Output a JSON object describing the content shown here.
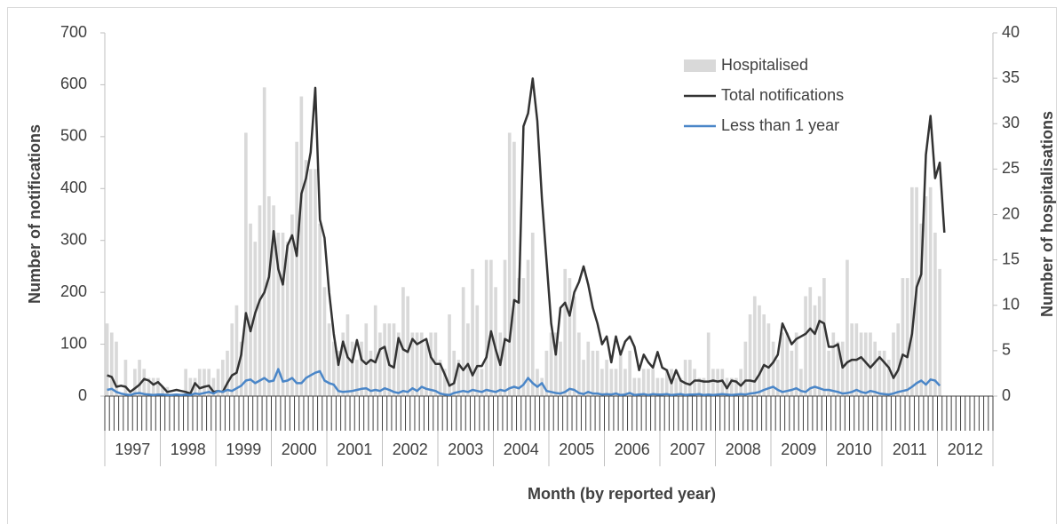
{
  "chart_data": {
    "type": "combo",
    "x_label": "Month (by reported year)",
    "y_label": "Number of notifications",
    "y2_label": "Number of hospitalisations",
    "category_groups": [
      "1997",
      "1998",
      "1999",
      "2000",
      "2001",
      "2002",
      "2003",
      "2004",
      "2005",
      "2006",
      "2007",
      "2008",
      "2009",
      "2010",
      "2011",
      "2012"
    ],
    "categories": [
      null,
      null,
      null,
      null,
      null,
      null,
      null,
      null,
      null,
      null,
      null,
      null,
      null,
      null,
      null,
      null,
      null,
      null,
      null,
      null,
      null,
      null,
      null,
      null,
      null,
      null,
      null,
      null,
      null,
      null,
      null,
      null,
      null,
      null,
      null,
      null,
      null,
      null,
      null,
      null,
      null,
      null,
      null,
      null,
      null,
      null,
      null,
      null,
      null,
      null,
      null,
      null,
      null,
      null,
      null,
      null,
      null,
      null,
      null,
      null,
      null,
      null,
      null,
      null,
      null,
      null,
      null,
      null,
      null,
      null,
      null,
      null,
      null,
      null,
      null,
      null,
      null,
      null,
      null,
      null,
      null,
      null,
      null,
      null,
      null,
      null,
      null,
      null,
      null,
      null,
      null,
      null,
      null,
      null,
      null,
      null,
      null,
      null,
      null,
      null,
      null,
      null,
      null,
      null,
      null,
      null,
      null,
      null,
      null,
      null,
      null,
      null,
      null,
      null,
      null,
      null,
      null,
      null,
      null,
      null,
      null,
      null,
      null,
      null,
      null,
      null,
      null,
      null,
      null,
      null,
      null,
      null,
      null,
      null,
      null,
      null,
      null,
      null,
      null,
      null,
      null,
      null,
      null,
      null,
      null,
      null,
      null,
      null,
      null,
      null,
      null,
      null,
      null,
      null,
      null,
      null,
      null,
      null,
      null,
      null,
      null,
      null,
      null,
      null,
      null,
      null,
      null,
      null,
      null,
      null,
      null,
      null,
      null,
      null,
      null,
      null,
      null,
      null,
      null,
      null,
      null,
      null,
      null,
      null,
      null,
      null,
      null,
      null,
      null,
      null,
      null,
      null
    ],
    "ylim": [
      0,
      700
    ],
    "yticks": [
      0,
      100,
      200,
      300,
      400,
      500,
      600,
      700
    ],
    "y2lim": [
      0,
      40
    ],
    "y2ticks": [
      0,
      5,
      10,
      15,
      20,
      25,
      30,
      35,
      40
    ],
    "legend": "top-right",
    "series": [
      {
        "name": "Hospitalised",
        "type": "bar",
        "axis": "y2",
        "color": "#d9d9d9",
        "values": [
          8,
          7,
          6,
          0,
          4,
          0,
          3,
          4,
          3,
          2,
          2,
          2,
          1,
          1,
          0,
          0,
          0,
          3,
          2,
          2,
          3,
          3,
          3,
          2,
          3,
          4,
          5,
          8,
          10,
          6,
          29,
          19,
          17,
          21,
          34,
          22,
          21,
          18,
          18,
          17,
          20,
          28,
          33,
          26,
          25,
          25,
          19,
          12,
          8,
          6,
          5,
          7,
          9,
          6,
          4,
          6,
          8,
          5,
          10,
          7,
          8,
          8,
          8,
          7,
          12,
          11,
          7,
          7,
          7,
          6,
          7,
          7,
          4,
          3,
          9,
          5,
          4,
          12,
          8,
          14,
          10,
          3,
          15,
          15,
          12,
          7,
          15,
          29,
          28,
          13,
          13,
          15,
          18,
          3,
          2,
          5,
          7,
          7,
          6,
          14,
          13,
          11,
          7,
          4,
          6,
          5,
          5,
          3,
          4,
          3,
          3,
          5,
          3,
          5,
          2,
          2,
          3,
          3,
          3,
          2,
          2,
          3,
          3,
          2,
          2,
          4,
          4,
          3,
          2,
          2,
          7,
          3,
          3,
          3,
          2,
          2,
          2,
          3,
          6,
          9,
          11,
          10,
          9,
          8,
          6,
          4,
          7,
          7,
          5,
          7,
          3,
          11,
          12,
          10,
          11,
          13,
          5,
          7,
          6,
          6,
          15,
          8,
          8,
          7,
          7,
          7,
          6,
          5,
          5,
          4,
          7,
          8,
          13,
          13,
          23,
          23,
          19,
          22,
          23,
          18,
          14,
          null,
          null,
          null,
          null,
          null,
          null,
          null,
          null,
          null,
          null,
          null
        ]
      },
      {
        "name": "Total notifications",
        "type": "line",
        "color": "#333333",
        "values": [
          40,
          37,
          18,
          20,
          18,
          8,
          15,
          22,
          33,
          30,
          22,
          27,
          18,
          8,
          10,
          12,
          10,
          8,
          5,
          25,
          15,
          18,
          20,
          8,
          10,
          8,
          25,
          40,
          45,
          80,
          160,
          125,
          160,
          185,
          200,
          230,
          318,
          245,
          215,
          290,
          310,
          270,
          390,
          420,
          470,
          594,
          340,
          305,
          200,
          120,
          60,
          105,
          75,
          65,
          108,
          70,
          62,
          70,
          65,
          90,
          95,
          60,
          55,
          112,
          90,
          85,
          110,
          100,
          105,
          110,
          75,
          62,
          62,
          42,
          20,
          25,
          62,
          50,
          62,
          40,
          58,
          58,
          75,
          125,
          90,
          60,
          110,
          105,
          185,
          180,
          520,
          545,
          612,
          530,
          380,
          260,
          140,
          80,
          170,
          180,
          155,
          200,
          220,
          250,
          215,
          170,
          140,
          100,
          115,
          65,
          115,
          80,
          105,
          115,
          95,
          50,
          80,
          65,
          55,
          85,
          55,
          50,
          25,
          50,
          30,
          25,
          22,
          30,
          30,
          28,
          28,
          30,
          28,
          30,
          15,
          30,
          28,
          20,
          30,
          30,
          28,
          42,
          60,
          55,
          65,
          80,
          140,
          120,
          100,
          110,
          115,
          120,
          130,
          120,
          145,
          140,
          95,
          95,
          100,
          55,
          65,
          70,
          70,
          75,
          65,
          55,
          65,
          75,
          65,
          55,
          35,
          50,
          80,
          75,
          120,
          210,
          235,
          465,
          540,
          420,
          450,
          315,
          null,
          null,
          null,
          null,
          null,
          null,
          null,
          null,
          null,
          null
        ]
      },
      {
        "name": "Less than 1 year",
        "type": "line",
        "color": "#4a86c8",
        "values": [
          12,
          14,
          8,
          5,
          3,
          2,
          5,
          6,
          4,
          3,
          2,
          3,
          3,
          2,
          2,
          3,
          2,
          3,
          2,
          5,
          4,
          6,
          8,
          5,
          10,
          8,
          12,
          10,
          15,
          20,
          30,
          32,
          25,
          30,
          35,
          28,
          30,
          52,
          28,
          30,
          35,
          25,
          25,
          35,
          40,
          45,
          48,
          30,
          25,
          22,
          10,
          8,
          9,
          10,
          12,
          14,
          15,
          10,
          12,
          10,
          15,
          12,
          8,
          6,
          10,
          8,
          15,
          10,
          18,
          14,
          12,
          10,
          5,
          3,
          2,
          6,
          8,
          10,
          8,
          12,
          10,
          8,
          12,
          10,
          8,
          12,
          10,
          15,
          18,
          15,
          22,
          35,
          25,
          18,
          25,
          10,
          8,
          6,
          5,
          8,
          14,
          12,
          6,
          4,
          8,
          5,
          5,
          3,
          4,
          3,
          5,
          2,
          3,
          6,
          2,
          3,
          4,
          2,
          4,
          3,
          3,
          4,
          2,
          3,
          4,
          2,
          3,
          3,
          4,
          2,
          3,
          2,
          3,
          4,
          3,
          2,
          3,
          4,
          3,
          5,
          6,
          8,
          12,
          15,
          18,
          12,
          8,
          10,
          12,
          15,
          10,
          8,
          15,
          18,
          15,
          12,
          12,
          10,
          8,
          5,
          6,
          8,
          12,
          8,
          6,
          10,
          8,
          5,
          4,
          3,
          5,
          8,
          10,
          12,
          18,
          25,
          30,
          22,
          32,
          30,
          20,
          null,
          null,
          null,
          null,
          null,
          null,
          null,
          null,
          null,
          null,
          null
        ]
      }
    ]
  }
}
